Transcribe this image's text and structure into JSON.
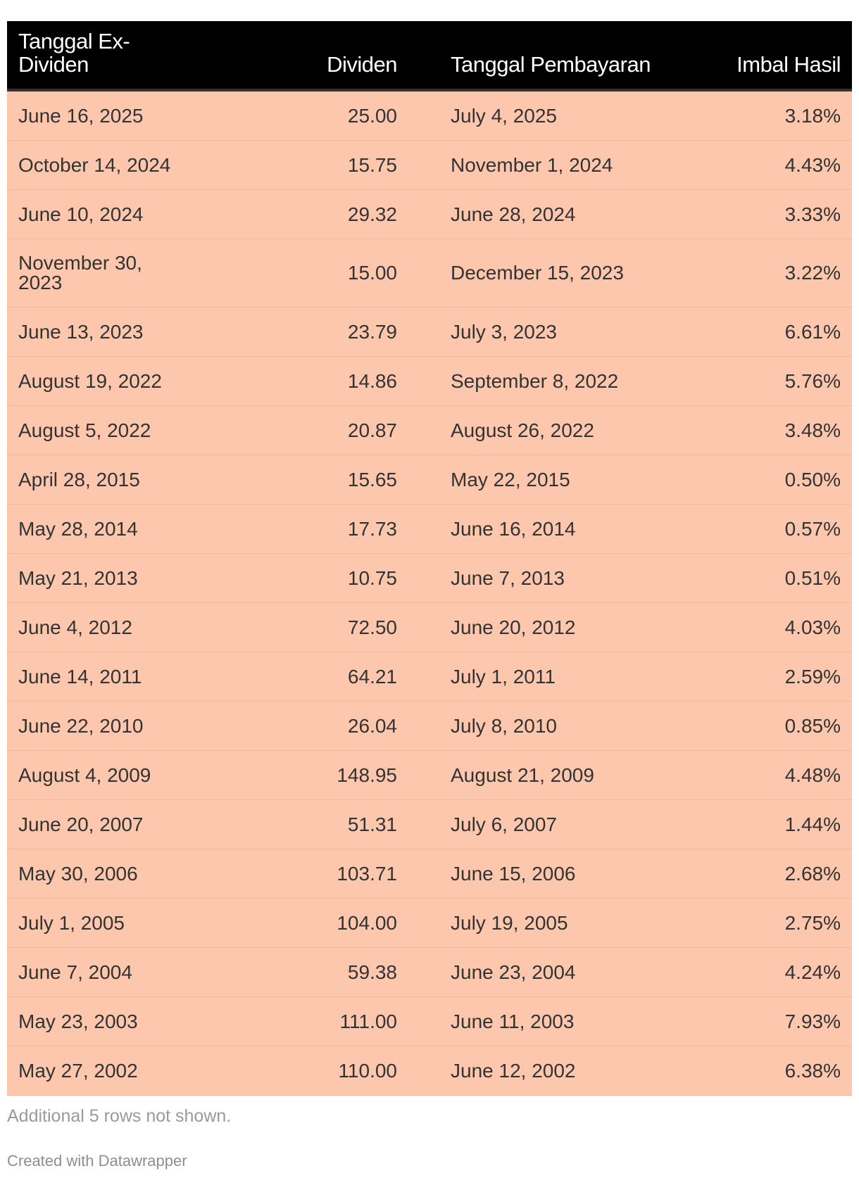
{
  "table": {
    "headers": {
      "ex_date": "Tanggal Ex-Dividen",
      "dividend": "Dividen",
      "pay_date": "Tanggal Pembayaran",
      "yield": "Imbal Hasil"
    },
    "rows": [
      [
        "June 16, 2025",
        "25.00",
        "July 4, 2025",
        "3.18%"
      ],
      [
        "October 14, 2024",
        "15.75",
        "November 1, 2024",
        "4.43%"
      ],
      [
        "June 10, 2024",
        "29.32",
        "June 28, 2024",
        "3.33%"
      ],
      [
        "November 30, 2023",
        "15.00",
        "December 15, 2023",
        "3.22%"
      ],
      [
        "June 13, 2023",
        "23.79",
        "July 3, 2023",
        "6.61%"
      ],
      [
        "August 19, 2022",
        "14.86",
        "September 8, 2022",
        "5.76%"
      ],
      [
        "August 5, 2022",
        "20.87",
        "August 26, 2022",
        "3.48%"
      ],
      [
        "April 28, 2015",
        "15.65",
        "May 22, 2015",
        "0.50%"
      ],
      [
        "May 28, 2014",
        "17.73",
        "June 16, 2014",
        "0.57%"
      ],
      [
        "May 21, 2013",
        "10.75",
        "June 7, 2013",
        "0.51%"
      ],
      [
        "June 4, 2012",
        "72.50",
        "June 20, 2012",
        "4.03%"
      ],
      [
        "June 14, 2011",
        "64.21",
        "July 1, 2011",
        "2.59%"
      ],
      [
        "June 22, 2010",
        "26.04",
        "July 8, 2010",
        "0.85%"
      ],
      [
        "August 4, 2009",
        "148.95",
        "August 21, 2009",
        "4.48%"
      ],
      [
        "June 20, 2007",
        "51.31",
        "July 6, 2007",
        "1.44%"
      ],
      [
        "May 30, 2006",
        "103.71",
        "June 15, 2006",
        "2.68%"
      ],
      [
        "July 1, 2005",
        "104.00",
        "July 19, 2005",
        "2.75%"
      ],
      [
        "June 7, 2004",
        "59.38",
        "June 23, 2004",
        "4.24%"
      ],
      [
        "May 23, 2003",
        "111.00",
        "June 11, 2003",
        "7.93%"
      ],
      [
        "May 27, 2002",
        "110.00",
        "June 12, 2002",
        "6.38%"
      ]
    ]
  },
  "footer": {
    "note": "Additional 5 rows not shown.",
    "credit": "Created with Datawrapper"
  },
  "colors": {
    "header_bg": "#000000",
    "header_text": "#ffffff",
    "row_bg": "#fdc7ad",
    "text": "#333333"
  },
  "chart_data": {
    "type": "table",
    "columns": [
      "Tanggal Ex-Dividen",
      "Dividen",
      "Tanggal Pembayaran",
      "Imbal Hasil"
    ],
    "rows": [
      [
        "June 16, 2025",
        25.0,
        "July 4, 2025",
        "3.18%"
      ],
      [
        "October 14, 2024",
        15.75,
        "November 1, 2024",
        "4.43%"
      ],
      [
        "June 10, 2024",
        29.32,
        "June 28, 2024",
        "3.33%"
      ],
      [
        "November 30, 2023",
        15.0,
        "December 15, 2023",
        "3.22%"
      ],
      [
        "June 13, 2023",
        23.79,
        "July 3, 2023",
        "6.61%"
      ],
      [
        "August 19, 2022",
        14.86,
        "September 8, 2022",
        "5.76%"
      ],
      [
        "August 5, 2022",
        20.87,
        "August 26, 2022",
        "3.48%"
      ],
      [
        "April 28, 2015",
        15.65,
        "May 22, 2015",
        "0.50%"
      ],
      [
        "May 28, 2014",
        17.73,
        "June 16, 2014",
        "0.57%"
      ],
      [
        "May 21, 2013",
        10.75,
        "June 7, 2013",
        "0.51%"
      ],
      [
        "June 4, 2012",
        72.5,
        "June 20, 2012",
        "4.03%"
      ],
      [
        "June 14, 2011",
        64.21,
        "July 1, 2011",
        "2.59%"
      ],
      [
        "June 22, 2010",
        26.04,
        "July 8, 2010",
        "0.85%"
      ],
      [
        "August 4, 2009",
        148.95,
        "August 21, 2009",
        "4.48%"
      ],
      [
        "June 20, 2007",
        51.31,
        "July 6, 2007",
        "1.44%"
      ],
      [
        "May 30, 2006",
        103.71,
        "June 15, 2006",
        "2.68%"
      ],
      [
        "July 1, 2005",
        104.0,
        "July 19, 2005",
        "2.75%"
      ],
      [
        "June 7, 2004",
        59.38,
        "June 23, 2004",
        "4.24%"
      ],
      [
        "May 23, 2003",
        111.0,
        "June 11, 2003",
        "7.93%"
      ],
      [
        "May 27, 2002",
        110.0,
        "June 12, 2002",
        "6.38%"
      ]
    ]
  }
}
